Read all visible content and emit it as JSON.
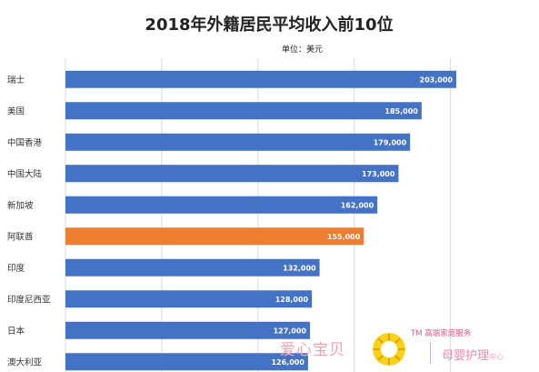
{
  "chart_data": {
    "type": "bar",
    "orientation": "horizontal",
    "title": "2018年外籍居民平均收入前10位",
    "unit_label": "单位：美元",
    "categories": [
      "瑞士",
      "美国",
      "中国香港",
      "中国大陆",
      "新加坡",
      "阿联酋",
      "印度",
      "印度尼西亚",
      "日本",
      "澳大利亚"
    ],
    "values": [
      203000,
      185000,
      179000,
      173000,
      162000,
      155000,
      132000,
      128000,
      127000,
      126000
    ],
    "value_labels": [
      "203,000",
      "185,000",
      "179,000",
      "173,000",
      "162,000",
      "155,000",
      "132,000",
      "128,000",
      "127,000",
      "126,000"
    ],
    "highlight_category": "阿联酋",
    "colors": {
      "bar": "#4472c4",
      "highlight": "#ed7d31",
      "grid": "#d9d9d9"
    },
    "grid": true,
    "xlim": [
      0,
      220000
    ]
  },
  "watermark": {
    "left_text": "爱心宝贝",
    "tm_text": "TM 高端家庭服务",
    "right_text": "母婴护理",
    "right_sub": "中心",
    "logo_icon": "sunburst-logo-icon"
  }
}
